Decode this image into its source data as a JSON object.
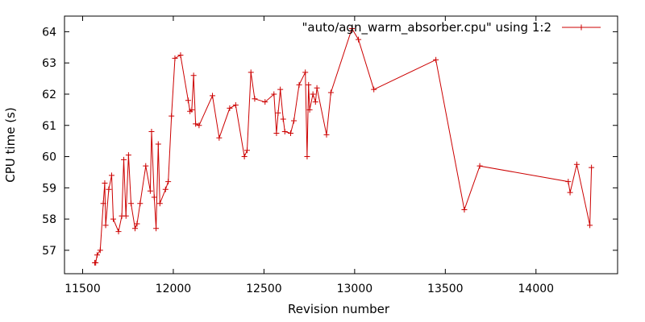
{
  "chart_data": {
    "type": "line",
    "title": "",
    "xlabel": "Revision number",
    "ylabel": "CPU time (s)",
    "xlim": [
      11400,
      14450
    ],
    "ylim": [
      56.25,
      64.5
    ],
    "xticks": [
      11500,
      12000,
      12500,
      13000,
      13500,
      14000
    ],
    "yticks": [
      57,
      58,
      59,
      60,
      61,
      62,
      63,
      64
    ],
    "grid": false,
    "legend_position": "top-right",
    "color": "#cc0000",
    "series": [
      {
        "name": "\"auto/agn_warm_absorber.cpu\" using 1:2",
        "points": [
          [
            11567,
            56.6
          ],
          [
            11572,
            56.6
          ],
          [
            11580,
            56.85
          ],
          [
            11597,
            57.0
          ],
          [
            11614,
            58.5
          ],
          [
            11622,
            59.15
          ],
          [
            11627,
            57.8
          ],
          [
            11644,
            58.95
          ],
          [
            11660,
            59.4
          ],
          [
            11669,
            58.0
          ],
          [
            11698,
            57.6
          ],
          [
            11716,
            58.1
          ],
          [
            11727,
            59.9
          ],
          [
            11739,
            58.1
          ],
          [
            11753,
            60.05
          ],
          [
            11767,
            58.5
          ],
          [
            11789,
            57.7
          ],
          [
            11800,
            57.85
          ],
          [
            11817,
            58.5
          ],
          [
            11848,
            59.7
          ],
          [
            11873,
            58.9
          ],
          [
            11880,
            60.8
          ],
          [
            11895,
            58.7
          ],
          [
            11905,
            57.7
          ],
          [
            11917,
            60.4
          ],
          [
            11926,
            58.5
          ],
          [
            11957,
            58.95
          ],
          [
            11972,
            59.2
          ],
          [
            11990,
            61.3
          ],
          [
            12009,
            63.15
          ],
          [
            12040,
            63.25
          ],
          [
            12082,
            61.8
          ],
          [
            12092,
            61.45
          ],
          [
            12102,
            61.5
          ],
          [
            12112,
            62.6
          ],
          [
            12123,
            61.05
          ],
          [
            12142,
            61.0
          ],
          [
            12216,
            61.95
          ],
          [
            12253,
            60.6
          ],
          [
            12311,
            61.55
          ],
          [
            12344,
            61.65
          ],
          [
            12392,
            60.0
          ],
          [
            12407,
            60.2
          ],
          [
            12428,
            62.7
          ],
          [
            12449,
            61.85
          ],
          [
            12506,
            61.75
          ],
          [
            12555,
            62.0
          ],
          [
            12569,
            60.75
          ],
          [
            12578,
            61.4
          ],
          [
            12590,
            62.15
          ],
          [
            12606,
            61.2
          ],
          [
            12615,
            60.8
          ],
          [
            12647,
            60.75
          ],
          [
            12665,
            61.15
          ],
          [
            12694,
            62.3
          ],
          [
            12728,
            62.7
          ],
          [
            12738,
            60.0
          ],
          [
            12746,
            62.3
          ],
          [
            12752,
            61.5
          ],
          [
            12770,
            62.0
          ],
          [
            12784,
            61.75
          ],
          [
            12792,
            62.2
          ],
          [
            12845,
            60.7
          ],
          [
            12869,
            62.05
          ],
          [
            12985,
            64.1
          ],
          [
            13021,
            63.75
          ],
          [
            13106,
            62.15
          ],
          [
            13448,
            63.1
          ],
          [
            13605,
            58.3
          ],
          [
            13690,
            59.7
          ],
          [
            14178,
            59.2
          ],
          [
            14188,
            58.85
          ],
          [
            14225,
            59.75
          ],
          [
            14297,
            57.8
          ],
          [
            14306,
            59.65
          ]
        ]
      }
    ]
  }
}
